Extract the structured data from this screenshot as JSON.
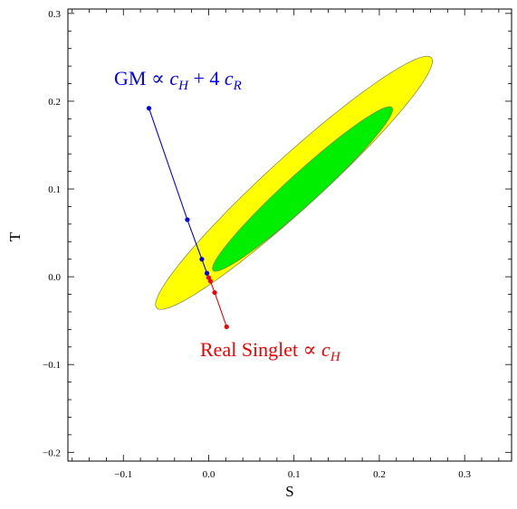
{
  "chart_data": {
    "type": "scatter",
    "title": "",
    "xlabel": "S",
    "ylabel": "T",
    "xlim": [
      -0.165,
      0.355
    ],
    "ylim": [
      -0.21,
      0.305
    ],
    "xticks": [
      -0.1,
      0.0,
      0.1,
      0.2,
      0.3
    ],
    "xtick_labels": [
      "−0.1",
      "0.0",
      "0.1",
      "0.2",
      "0.3"
    ],
    "yticks": [
      -0.2,
      -0.1,
      0.0,
      0.1,
      0.2,
      0.3
    ],
    "ytick_labels": [
      "−0.2",
      "−0.1",
      "0.0",
      "0.1",
      "0.2",
      "0.3"
    ],
    "grid": false,
    "regions": [
      {
        "level": "outer",
        "color": "#ffff00",
        "center": [
          0.1,
          0.107
        ],
        "semi_axes": [
          0.215,
          0.03
        ],
        "angle_deg": 41.5
      },
      {
        "level": "inner",
        "color": "#00ee00",
        "center": [
          0.11,
          0.1
        ],
        "semi_axes": [
          0.14,
          0.018
        ],
        "angle_deg": 41.5
      }
    ],
    "series": [
      {
        "color": "#0000ee",
        "points": [
          [
            -0.07,
            0.192
          ],
          [
            -0.025,
            0.065
          ],
          [
            -0.008,
            0.02
          ],
          [
            -0.002,
            0.004
          ]
        ]
      },
      {
        "color": "#ee0000",
        "points": [
          [
            0.0,
            -0.001
          ],
          [
            0.002,
            -0.005
          ],
          [
            0.007,
            -0.018
          ],
          [
            0.021,
            -0.057
          ]
        ]
      }
    ],
    "annotations": [
      {
        "text": "GM ∝ ",
        "math": "c_H + 4 c_R",
        "parts": [
          "c",
          "H",
          " + 4 ",
          "c",
          "R"
        ],
        "color": "#0000ee"
      },
      {
        "text": "Real Singlet ∝ ",
        "parts": [
          "c",
          "H"
        ],
        "color": "#ee0000"
      }
    ]
  }
}
